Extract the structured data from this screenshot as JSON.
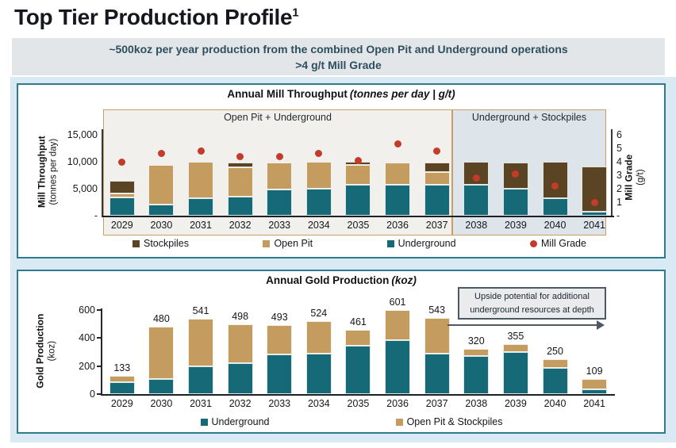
{
  "page": {
    "title": "Top Tier Production Profile",
    "title_superscript": "1",
    "banner_line1": "~500koz per year production from the combined Open Pit and Underground operations",
    "banner_line2": ">4 g/t Mill Grade"
  },
  "colors": {
    "underground_teal": "#166a78",
    "open_pit_tan": "#c59c60",
    "stockpiles_brown": "#5a4423",
    "mill_grade_red": "#c23b2b",
    "panel_border_teal": "#2d7b8b",
    "page_background_blue": "#d9eaf5",
    "banner_background": "#e3e6e8",
    "banner_text": "#2e4f5d",
    "region_border_tan": "#c9a063",
    "region_left_background": "#f1f0ed",
    "region_right_background": "#dde5ea"
  },
  "chart_data": [
    {
      "type": "bar",
      "title": "Annual Mill Throughput",
      "title_suffix": "(tonnes per day | g/t)",
      "categories": [
        "2029",
        "2030",
        "2031",
        "2032",
        "2033",
        "2034",
        "2035",
        "2036",
        "2037",
        "2038",
        "2039",
        "2040",
        "2041"
      ],
      "y_axis": {
        "label": "Mill Throughput",
        "sublabel": "(tonnes per day)",
        "max": 15000,
        "ticks": [
          {
            "v": 15000,
            "t": "15,000"
          },
          {
            "v": 10000,
            "t": "10,000"
          },
          {
            "v": 5000,
            "t": "5,000"
          },
          {
            "v": 0,
            "t": "-"
          }
        ]
      },
      "y2_axis": {
        "label": "Mill Grade",
        "sublabel": "(g/t)",
        "max": 6,
        "ticks": [
          {
            "v": 6,
            "t": "6"
          },
          {
            "v": 5,
            "t": "5"
          },
          {
            "v": 4,
            "t": "4"
          },
          {
            "v": 3,
            "t": "3"
          },
          {
            "v": 2,
            "t": "2"
          },
          {
            "v": 1,
            "t": "1"
          },
          {
            "v": 0,
            "t": "-"
          }
        ]
      },
      "series": [
        {
          "name": "Underground",
          "color": "#166a78",
          "values": [
            3400,
            2000,
            3200,
            3600,
            4800,
            5000,
            5700,
            5700,
            5700,
            5700,
            5000,
            3200,
            800
          ]
        },
        {
          "name": "Open Pit",
          "color": "#c59c60",
          "values": [
            700,
            7300,
            6800,
            5400,
            5000,
            5000,
            3700,
            4100,
            2400,
            0,
            0,
            0,
            0
          ]
        },
        {
          "name": "Stockpiles",
          "color": "#5a4423",
          "values": [
            2300,
            0,
            0,
            900,
            0,
            0,
            600,
            0,
            1800,
            4200,
            4800,
            6700,
            8400
          ]
        }
      ],
      "dot_series": {
        "name": "Mill Grade",
        "color": "#c23b2b",
        "values": [
          4.0,
          4.6,
          4.8,
          4.4,
          4.4,
          4.6,
          4.1,
          5.3,
          4.8,
          2.8,
          3.1,
          2.2,
          1.0
        ]
      },
      "regions": [
        {
          "label": "Open Pit + Underground"
        },
        {
          "label": "Underground + Stockpiles"
        }
      ],
      "legend": [
        {
          "label": "Stockpiles",
          "color": "#5a4423",
          "marker": "square"
        },
        {
          "label": "Open Pit",
          "color": "#c59c60",
          "marker": "square"
        },
        {
          "label": "Underground",
          "color": "#166a78",
          "marker": "square"
        },
        {
          "label": "Mill Grade",
          "color": "#c23b2b",
          "marker": "circle"
        }
      ]
    },
    {
      "type": "bar",
      "title": "Annual Gold Production",
      "title_suffix": "(koz)",
      "categories": [
        "2029",
        "2030",
        "2031",
        "2032",
        "2033",
        "2034",
        "2035",
        "2036",
        "2037",
        "2038",
        "2039",
        "2040",
        "2041"
      ],
      "y_axis": {
        "label": "Gold Production",
        "sublabel": "(koz)",
        "max": 600,
        "ticks": [
          {
            "v": 600,
            "t": "600"
          },
          {
            "v": 400,
            "t": "400"
          },
          {
            "v": 200,
            "t": "200"
          },
          {
            "v": 0,
            "t": "0"
          }
        ]
      },
      "series": [
        {
          "name": "Underground",
          "color": "#166a78",
          "values": [
            85,
            105,
            200,
            220,
            285,
            290,
            345,
            385,
            290,
            270,
            300,
            185,
            35
          ]
        },
        {
          "name": "Open Pit & Stockpiles",
          "color": "#c59c60",
          "values": [
            48,
            375,
            341,
            278,
            208,
            234,
            116,
            216,
            253,
            50,
            55,
            65,
            74
          ]
        }
      ],
      "totals": [
        "133",
        "480",
        "541",
        "498",
        "493",
        "524",
        "461",
        "601",
        "543",
        "320",
        "355",
        "250",
        "109"
      ],
      "annotation": {
        "line1": "Upside potential for additional",
        "line2": "underground resources at depth"
      },
      "legend": [
        {
          "label": "Underground",
          "color": "#166a78",
          "marker": "square"
        },
        {
          "label": "Open Pit & Stockpiles",
          "color": "#c59c60",
          "marker": "square"
        }
      ]
    }
  ]
}
